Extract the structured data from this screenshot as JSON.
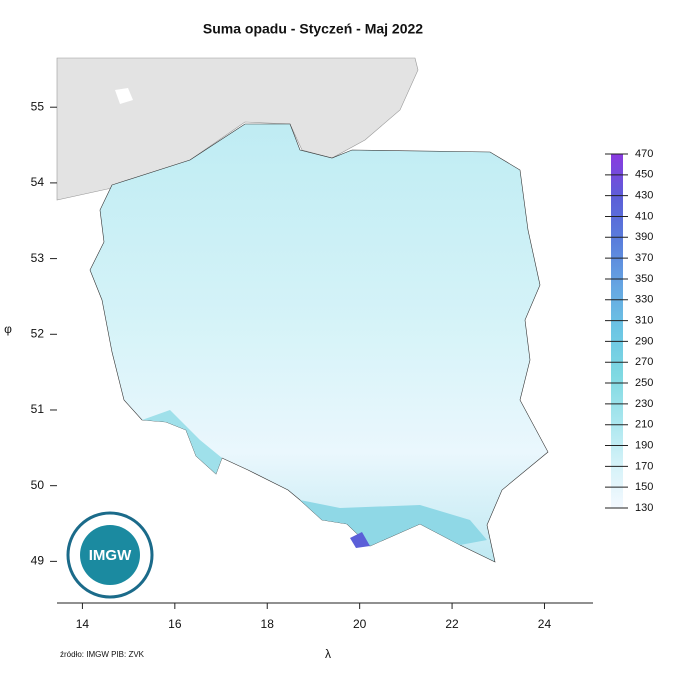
{
  "chart_data": {
    "type": "map",
    "title": "Suma opadu - Styczeń - Maj 2022",
    "x_label": "λ",
    "y_label": "φ",
    "source": "źródło: IMGW PIB: ZVK",
    "logo": "IMGW",
    "xlim": [
      13.45,
      25.05
    ],
    "ylim": [
      48.45,
      55.65
    ],
    "xticks": [
      14,
      16,
      18,
      20,
      22,
      24
    ],
    "yticks": [
      49,
      50,
      51,
      52,
      53,
      54,
      55
    ],
    "colorbar": {
      "lim": [
        130,
        470
      ],
      "ticks": [
        130,
        150,
        170,
        190,
        210,
        230,
        250,
        270,
        290,
        310,
        330,
        350,
        370,
        390,
        410,
        430,
        450,
        470
      ],
      "colors": [
        "#f4f9ff",
        "#d4f2f8",
        "#a8e6ee",
        "#7fd9e2",
        "#6cc6e4",
        "#66a6e2",
        "#5a7fdc",
        "#5b5fd8",
        "#8a3ae0"
      ]
    }
  }
}
